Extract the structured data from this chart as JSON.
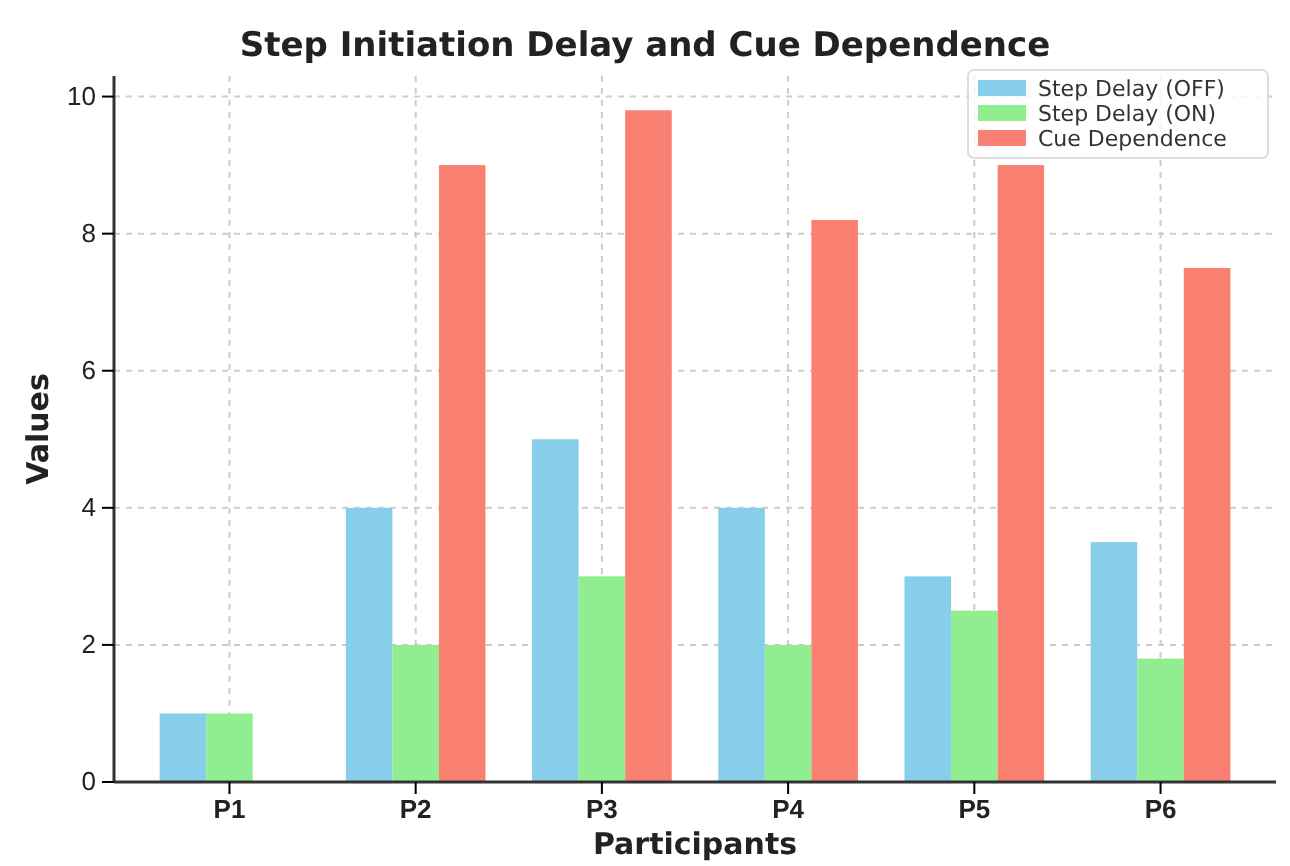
{
  "chart_data": {
    "type": "bar",
    "title": "Step Initiation Delay and Cue Dependence",
    "xlabel": "Participants",
    "ylabel": "Values",
    "categories": [
      "P1",
      "P2",
      "P3",
      "P4",
      "P5",
      "P6"
    ],
    "series": [
      {
        "name": "Step Delay (OFF)",
        "color": "#87ceeb",
        "values": [
          1,
          4,
          5,
          4,
          3,
          3.5
        ]
      },
      {
        "name": "Step Delay (ON)",
        "color": "#90ee90",
        "values": [
          1,
          2,
          3,
          2,
          2.5,
          1.8
        ]
      },
      {
        "name": "Cue Dependence",
        "color": "#fa8072",
        "values": [
          0,
          9,
          9.8,
          8.2,
          9,
          7.5
        ]
      }
    ],
    "ylim": [
      0,
      10.3
    ],
    "yticks": [
      0,
      2,
      4,
      6,
      8,
      10
    ],
    "grid": true,
    "legend": "top right"
  }
}
